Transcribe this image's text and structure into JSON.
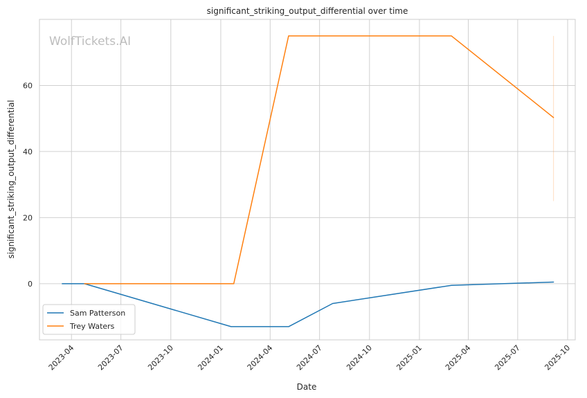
{
  "watermark": "WolfTickets.AI",
  "chart_data": {
    "type": "line",
    "title": "significant_striking_output_differential over time",
    "xlabel": "Date",
    "ylabel": "significant_striking_output_differential",
    "x_type": "date",
    "xlim": [
      "2023-02-01",
      "2025-10-15"
    ],
    "ylim": [
      -17,
      80
    ],
    "x_ticks": [
      "2023-04-01",
      "2023-07-01",
      "2023-10-01",
      "2024-01-01",
      "2024-04-01",
      "2024-07-01",
      "2024-10-01",
      "2025-01-01",
      "2025-04-01",
      "2025-07-01",
      "2025-10-01"
    ],
    "x_tick_labels": [
      "2023-04",
      "2023-07",
      "2023-10",
      "2024-01",
      "2024-04",
      "2024-07",
      "2024-10",
      "2025-01",
      "2025-04",
      "2025-07",
      "2025-10"
    ],
    "y_ticks": [
      0,
      20,
      40,
      60
    ],
    "y_tick_labels": [
      "0",
      "20",
      "40",
      "60"
    ],
    "grid": true,
    "legend_position": "lower-left",
    "series": [
      {
        "name": "Sam Patterson",
        "color": "#1f77b4",
        "points": [
          {
            "x": "2023-03-15",
            "y": 0
          },
          {
            "x": "2023-04-25",
            "y": 0
          },
          {
            "x": "2024-01-20",
            "y": -13
          },
          {
            "x": "2024-05-05",
            "y": -13
          },
          {
            "x": "2024-07-25",
            "y": -6
          },
          {
            "x": "2025-03-01",
            "y": -0.5
          },
          {
            "x": "2025-09-05",
            "y": 0.5
          }
        ]
      },
      {
        "name": "Trey Waters",
        "color": "#ff7f0e",
        "points": [
          {
            "x": "2023-04-25",
            "y": 0
          },
          {
            "x": "2024-01-25",
            "y": 0
          },
          {
            "x": "2024-05-05",
            "y": 75
          },
          {
            "x": "2025-03-01",
            "y": 75
          },
          {
            "x": "2025-09-05",
            "y": 50.3
          }
        ],
        "error_bar": {
          "x": "2025-09-05",
          "low": 25,
          "high": 75
        }
      }
    ]
  }
}
